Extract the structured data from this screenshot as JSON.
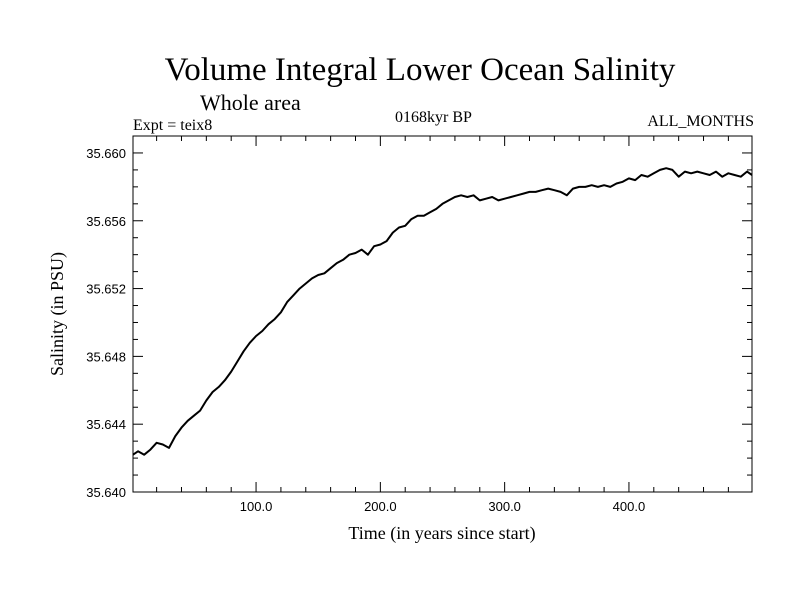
{
  "chart_data": {
    "type": "line",
    "title": "Volume Integral Lower Ocean Salinity",
    "subtitle": "Whole area",
    "left_label": "Expt = teix8",
    "center_label": "0168kyr BP",
    "right_label": "ALL_MONTHS",
    "xlabel": "Time (in years since start)",
    "ylabel": "Salinity (in PSU)",
    "xlim": [
      1,
      499
    ],
    "ylim": [
      35.64,
      35.661
    ],
    "x_ticks": [
      100,
      200,
      300,
      400
    ],
    "x_tick_labels": [
      "100.0",
      "200.0",
      "300.0",
      "400.0"
    ],
    "y_ticks": [
      35.64,
      35.644,
      35.648,
      35.652,
      35.656,
      35.66
    ],
    "y_tick_labels": [
      "35.640",
      "35.644",
      "35.648",
      "35.652",
      "35.656",
      "35.660"
    ],
    "grid": false,
    "series": [
      {
        "color": "#000000",
        "x": [
          1,
          5,
          10,
          15,
          20,
          25,
          30,
          35,
          40,
          45,
          50,
          55,
          60,
          65,
          70,
          75,
          80,
          85,
          90,
          95,
          100,
          105,
          110,
          115,
          120,
          125,
          130,
          135,
          140,
          145,
          150,
          155,
          160,
          165,
          170,
          175,
          180,
          185,
          190,
          195,
          200,
          205,
          210,
          215,
          220,
          225,
          230,
          235,
          240,
          245,
          250,
          255,
          260,
          265,
          270,
          275,
          280,
          285,
          290,
          295,
          300,
          305,
          310,
          315,
          320,
          325,
          330,
          335,
          340,
          345,
          350,
          355,
          360,
          365,
          370,
          375,
          380,
          385,
          390,
          395,
          400,
          405,
          410,
          415,
          420,
          425,
          430,
          435,
          440,
          445,
          450,
          455,
          460,
          465,
          470,
          475,
          480,
          485,
          490,
          495,
          499
        ],
        "y": [
          35.6422,
          35.6424,
          35.6422,
          35.6425,
          35.6429,
          35.6428,
          35.6426,
          35.6433,
          35.6438,
          35.6442,
          35.6445,
          35.6448,
          35.6454,
          35.6459,
          35.6462,
          35.6466,
          35.6471,
          35.6477,
          35.6483,
          35.6488,
          35.6492,
          35.6495,
          35.6499,
          35.6502,
          35.6506,
          35.6512,
          35.6516,
          35.652,
          35.6523,
          35.6526,
          35.6528,
          35.6529,
          35.6532,
          35.6535,
          35.6537,
          35.654,
          35.6541,
          35.6543,
          35.654,
          35.6545,
          35.6546,
          35.6548,
          35.6553,
          35.6556,
          35.6557,
          35.6561,
          35.6563,
          35.6563,
          35.6565,
          35.6567,
          35.657,
          35.6572,
          35.6574,
          35.6575,
          35.6574,
          35.6575,
          35.6572,
          35.6573,
          35.6574,
          35.6572,
          35.6573,
          35.6574,
          35.6575,
          35.6576,
          35.6577,
          35.6577,
          35.6578,
          35.6579,
          35.6578,
          35.6577,
          35.6575,
          35.6579,
          35.658,
          35.658,
          35.6581,
          35.658,
          35.6581,
          35.658,
          35.6582,
          35.6583,
          35.6585,
          35.6584,
          35.6587,
          35.6586,
          35.6588,
          35.659,
          35.6591,
          35.659,
          35.6586,
          35.6589,
          35.6588,
          35.6589,
          35.6588,
          35.6587,
          35.6589,
          35.6586,
          35.6588,
          35.6587,
          35.6586,
          35.6589,
          35.6587
        ]
      }
    ]
  }
}
